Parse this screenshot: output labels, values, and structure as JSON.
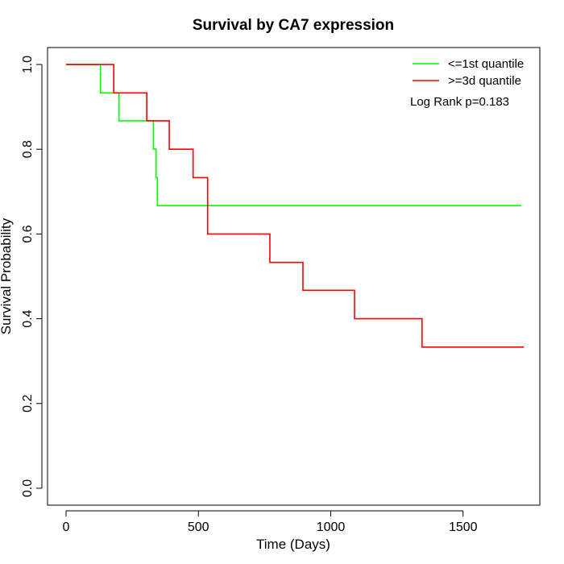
{
  "chart_data": {
    "type": "line",
    "step": true,
    "title": "Survival by CA7 expression",
    "xlabel": "Time (Days)",
    "ylabel": "Survival Probability",
    "xlim": [
      -70,
      1790
    ],
    "ylim": [
      -0.04,
      1.04
    ],
    "xticks": [
      0,
      500,
      1000,
      1500
    ],
    "yticks": [
      0.0,
      0.2,
      0.4,
      0.6,
      0.8,
      1.0
    ],
    "xtick_labels": [
      "0",
      "500",
      "1000",
      "1500"
    ],
    "ytick_labels": [
      "0.0",
      "0.2",
      "0.4",
      "0.6",
      "0.8",
      "1.0"
    ],
    "grid": false,
    "legend_position": "top-right",
    "annotation": "Log Rank p=0.183",
    "series": [
      {
        "name": "<=1st quantile",
        "color": "#00ff00",
        "x": [
          0,
          130,
          200,
          330,
          340,
          345,
          1720
        ],
        "y": [
          1.0,
          0.933,
          0.867,
          0.8,
          0.733,
          0.667,
          0.667
        ]
      },
      {
        "name": ">=3d quantile",
        "color": "#ff0000",
        "x": [
          0,
          180,
          305,
          390,
          480,
          535,
          770,
          895,
          1090,
          1345,
          1730
        ],
        "y": [
          1.0,
          0.933,
          0.867,
          0.8,
          0.733,
          0.6,
          0.533,
          0.467,
          0.4,
          0.333,
          0.333
        ]
      }
    ]
  }
}
